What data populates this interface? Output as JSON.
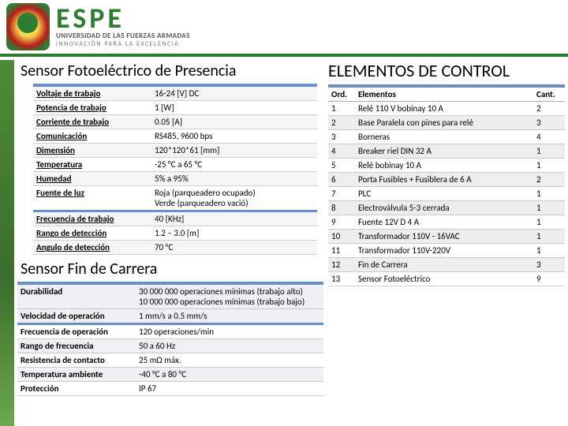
{
  "header": {
    "brand": "ESPE",
    "line1": "UNIVERSIDAD DE LAS FUERZAS ARMADAS",
    "line2": "INNOVACIÓN PARA LA EXCELENCIA"
  },
  "photo": {
    "title": "Sensor Fotoeléctrico de Presencia",
    "rows1": [
      {
        "k": "Voltaje de trabajo",
        "v": "16-24 [V] DC"
      },
      {
        "k": "Potencia de trabajo",
        "v": "1 [W]"
      },
      {
        "k": "Corriente de trabajo",
        "v": "0.05 [A]"
      },
      {
        "k": "Comunicación",
        "v": "RS485, 9600 bps"
      },
      {
        "k": "Dimensión",
        "v": "120*120*61 [mm]"
      },
      {
        "k": "Temperatura",
        "v": "-25 °C a 65 °C"
      },
      {
        "k": "Humedad",
        "v": "5% a 95%"
      },
      {
        "k": "Fuente de luz",
        "v": "Roja (parqueadero ocupado)\nVerde (parqueadero vació)"
      }
    ],
    "rows2": [
      {
        "k": "Frecuencia de trabajo",
        "v": "40 [KHz]"
      },
      {
        "k": "Rango de detección",
        "v": "1.2 – 3.0 [m]"
      },
      {
        "k": "Angulo de detección",
        "v": "70 °C"
      }
    ]
  },
  "fin": {
    "title": "Sensor Fin de Carrera",
    "rows": [
      {
        "k": "Durabilidad",
        "v": "30 000 000 operaciones mínimas (trabajo alto)\n10 000 000 operaciones mínimas (trabajo bajo)"
      },
      {
        "k": "Velocidad de operación",
        "v": "1 mm/s a 0.5 mm/s"
      },
      {
        "k": "Frecuencia de operación",
        "v": "120 operaciones/min"
      },
      {
        "k": "Rango de frecuencia",
        "v": "50 a 60 Hz"
      },
      {
        "k": "Resistencia de contacto",
        "v": "25 mΩ máx."
      },
      {
        "k": "Temperatura ambiente",
        "v": "-40 °C a 80 °C"
      },
      {
        "k": "Protección",
        "v": "IP 67"
      }
    ]
  },
  "control": {
    "title": "ELEMENTOS DE CONTROL",
    "columns": [
      "Ord.",
      "Elementos",
      "Cant."
    ],
    "rows": [
      {
        "n": "1",
        "e": "Relé 110 V bobinay 10 A",
        "c": "2"
      },
      {
        "n": "2",
        "e": "Base Paralela con pines para relé",
        "c": "3"
      },
      {
        "n": "3",
        "e": "Borneras",
        "c": "4"
      },
      {
        "n": "4",
        "e": "Breaker riel DIN 32 A",
        "c": "1"
      },
      {
        "n": "5",
        "e": "Relé bobinay 10 A",
        "c": "1"
      },
      {
        "n": "6",
        "e": "Porta Fusibles + Fusiblera de 6 A",
        "c": "2"
      },
      {
        "n": "7",
        "e": "PLC",
        "c": "1"
      },
      {
        "n": "8",
        "e": "Electroválvula 5-3 cerrada",
        "c": "1"
      },
      {
        "n": "9",
        "e": "Fuente 12V D 4 A",
        "c": "1"
      },
      {
        "n": "10",
        "e": "Transformador 110V - 16VAC",
        "c": "1"
      },
      {
        "n": "11",
        "e": "Transformador 110V-220V",
        "c": "1"
      },
      {
        "n": "12",
        "e": "Fin de Carrera",
        "c": "3"
      },
      {
        "n": "13",
        "e": "Sensor Fotoeléctrico",
        "c": "9"
      }
    ]
  }
}
